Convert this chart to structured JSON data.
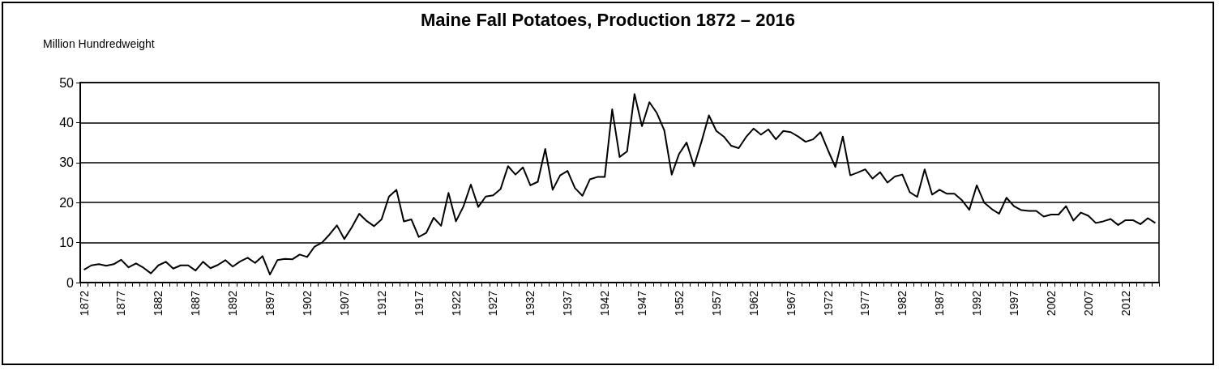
{
  "chart_data": {
    "type": "line",
    "title": "Maine Fall Potatoes, Production 1872 – 2016",
    "ylabel": "Million Hundredweight",
    "categories": [
      "1872",
      null,
      null,
      null,
      null,
      "1877",
      null,
      null,
      null,
      null,
      "1882",
      null,
      null,
      null,
      null,
      "1887",
      null,
      null,
      null,
      null,
      "1892",
      null,
      null,
      null,
      null,
      "1897",
      null,
      null,
      null,
      null,
      "1902",
      null,
      null,
      null,
      null,
      "1907",
      null,
      null,
      null,
      null,
      "1912",
      null,
      null,
      null,
      null,
      "1917",
      null,
      null,
      null,
      null,
      "1922",
      null,
      null,
      null,
      null,
      "1927",
      null,
      null,
      null,
      null,
      "1932",
      null,
      null,
      null,
      null,
      "1937",
      null,
      null,
      null,
      null,
      "1942",
      null,
      null,
      null,
      null,
      "1947",
      null,
      null,
      null,
      null,
      "1952",
      null,
      null,
      null,
      null,
      "1957",
      null,
      null,
      null,
      null,
      "1962",
      null,
      null,
      null,
      null,
      "1967",
      null,
      null,
      null,
      null,
      "1972",
      null,
      null,
      null,
      null,
      "1977",
      null,
      null,
      null,
      null,
      "1982",
      null,
      null,
      null,
      null,
      "1987",
      null,
      null,
      null,
      null,
      "1992",
      null,
      null,
      null,
      null,
      "1997",
      null,
      null,
      null,
      null,
      "2002",
      null,
      null,
      null,
      null,
      "2007",
      null,
      null,
      null,
      null,
      "2012",
      null,
      null,
      null,
      null
    ],
    "values": [
      3.2,
      4.3,
      4.6,
      4.2,
      4.6,
      5.7,
      3.8,
      4.8,
      3.7,
      2.3,
      4.3,
      5.2,
      3.5,
      4.3,
      4.3,
      3.0,
      5.2,
      3.6,
      4.4,
      5.6,
      4.0,
      5.3,
      6.2,
      4.9,
      6.6,
      2.0,
      5.6,
      5.9,
      5.8,
      7.0,
      6.4,
      9.0,
      10.0,
      12.0,
      14.3,
      10.9,
      13.8,
      17.2,
      15.4,
      14.1,
      15.8,
      21.5,
      23.2,
      15.3,
      15.8,
      11.4,
      12.4,
      16.2,
      14.2,
      22.4,
      15.3,
      19.0,
      24.5,
      18.9,
      21.5,
      21.8,
      23.4,
      29.1,
      27.0,
      28.8,
      24.3,
      25.2,
      33.4,
      23.2,
      26.8,
      27.9,
      23.6,
      21.7,
      25.8,
      26.4,
      26.4,
      43.3,
      31.4,
      32.8,
      47.1,
      39.1,
      45.1,
      42.4,
      38.1,
      27.0,
      32.2,
      35.0,
      29.1,
      35.2,
      41.8,
      37.9,
      36.5,
      34.2,
      33.6,
      36.4,
      38.5,
      37.0,
      38.3,
      35.8,
      37.9,
      37.6,
      36.5,
      35.2,
      35.8,
      37.6,
      33.1,
      28.9,
      36.5,
      26.8,
      27.5,
      28.3,
      26.0,
      27.6,
      25.0,
      26.5,
      27.0,
      22.6,
      21.4,
      28.3,
      22.0,
      23.2,
      22.2,
      22.2,
      20.6,
      18.2,
      24.3,
      20.0,
      18.4,
      17.2,
      21.2,
      19.1,
      18.1,
      17.9,
      17.9,
      16.5,
      17.0,
      17.0,
      19.1,
      15.5,
      17.5,
      16.7,
      14.9,
      15.3,
      15.9,
      14.4,
      15.6,
      15.6,
      14.6,
      16.1,
      14.9
    ],
    "color": "#000000",
    "ylim": [
      0,
      50
    ],
    "yticks": [
      0,
      10,
      20,
      30,
      40,
      50
    ],
    "grid": "y",
    "marker": "none",
    "line_style": "solid"
  }
}
